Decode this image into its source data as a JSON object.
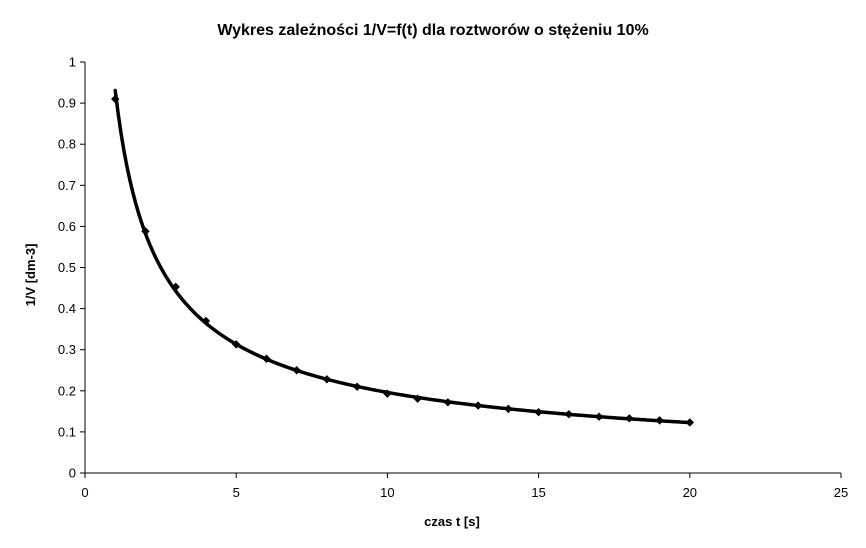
{
  "chart_data": {
    "type": "scatter",
    "title": "Wykres zależności 1/V=f(t) dla roztworów o stężeniu 10%",
    "xlabel": "czas t [s]",
    "ylabel": "1/V [dm-3]",
    "xlim": [
      0,
      25
    ],
    "ylim": [
      0,
      1
    ],
    "xticks": [
      0,
      5,
      10,
      15,
      20,
      25
    ],
    "yticks": [
      0,
      0.1,
      0.2,
      0.3,
      0.4,
      0.5,
      0.6,
      0.7,
      0.8,
      0.9,
      1
    ],
    "xtick_labels": [
      "0",
      "5",
      "10",
      "15",
      "20",
      "25"
    ],
    "ytick_labels": [
      "0",
      "0.1",
      "0.2",
      "0.3",
      "0.4",
      "0.5",
      "0.6",
      "0.7",
      "0.8",
      "0.9",
      "1"
    ],
    "grid": false,
    "legend": "none",
    "series": [
      {
        "x": [
          1,
          2,
          3,
          4,
          5,
          6,
          7,
          8,
          9,
          10,
          11,
          12,
          13,
          14,
          15,
          16,
          17,
          18,
          19,
          20
        ],
        "y": [
          0.91,
          0.588,
          0.453,
          0.37,
          0.313,
          0.278,
          0.25,
          0.228,
          0.21,
          0.193,
          0.181,
          0.172,
          0.164,
          0.156,
          0.148,
          0.143,
          0.137,
          0.133,
          0.128,
          0.123
        ],
        "color": "#000000",
        "marker": "diamond",
        "trendline": "power"
      }
    ]
  }
}
